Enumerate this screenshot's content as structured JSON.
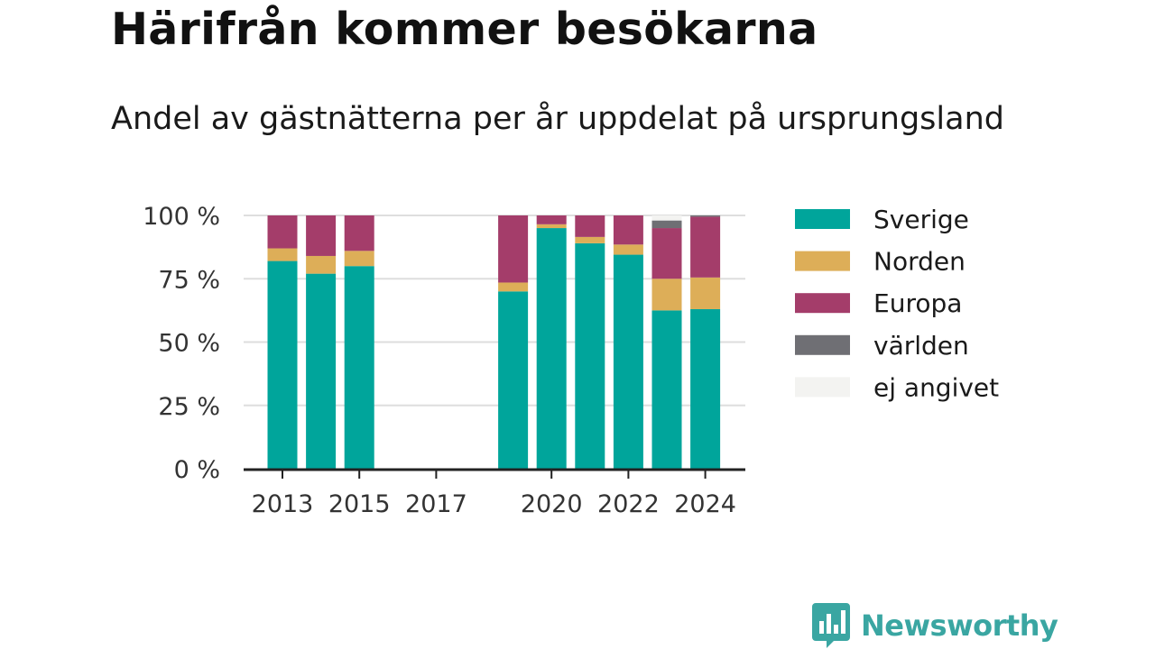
{
  "title": "Härifrån kommer besökarna",
  "subtitle": "Andel av gästnätterna per år uppdelat på ursprungsland",
  "brand": {
    "name": "Newsworthy",
    "color": "#3aa6a2"
  },
  "chart_data": {
    "type": "bar",
    "stacked": true,
    "x": [
      2013,
      2014,
      2015,
      2016,
      2017,
      2018,
      2019,
      2020,
      2021,
      2022,
      2023,
      2024
    ],
    "x_tick_labels": [
      "2013",
      "2015",
      "2017",
      "2020",
      "2022",
      "2024"
    ],
    "y_tick_labels": [
      "0 %",
      "25 %",
      "50 %",
      "75 %",
      "100 %"
    ],
    "ylim": [
      0,
      100
    ],
    "grid": true,
    "legend_position": "right",
    "series": [
      {
        "name": "Sverige",
        "color": "#00a59b",
        "values": [
          82,
          77,
          80,
          null,
          null,
          null,
          70,
          95,
          89,
          84.5,
          62.5,
          63
        ]
      },
      {
        "name": "Norden",
        "color": "#ddae58",
        "values": [
          5,
          7,
          6,
          null,
          null,
          null,
          3.5,
          1.5,
          2.5,
          4,
          12.5,
          12.5
        ]
      },
      {
        "name": "Europa",
        "color": "#a43d6a",
        "values": [
          13,
          16,
          14,
          null,
          null,
          null,
          26.5,
          3.5,
          8.5,
          11.5,
          20,
          24
        ]
      },
      {
        "name": "världen",
        "color": "#6f6f74",
        "values": [
          0,
          0,
          0,
          null,
          null,
          null,
          0,
          0,
          0,
          0,
          3,
          0.5
        ]
      },
      {
        "name": "ej angivet",
        "color": "#f3f3f1",
        "values": [
          0,
          0,
          0,
          null,
          null,
          null,
          0,
          0,
          0,
          0,
          2,
          0
        ]
      }
    ]
  }
}
